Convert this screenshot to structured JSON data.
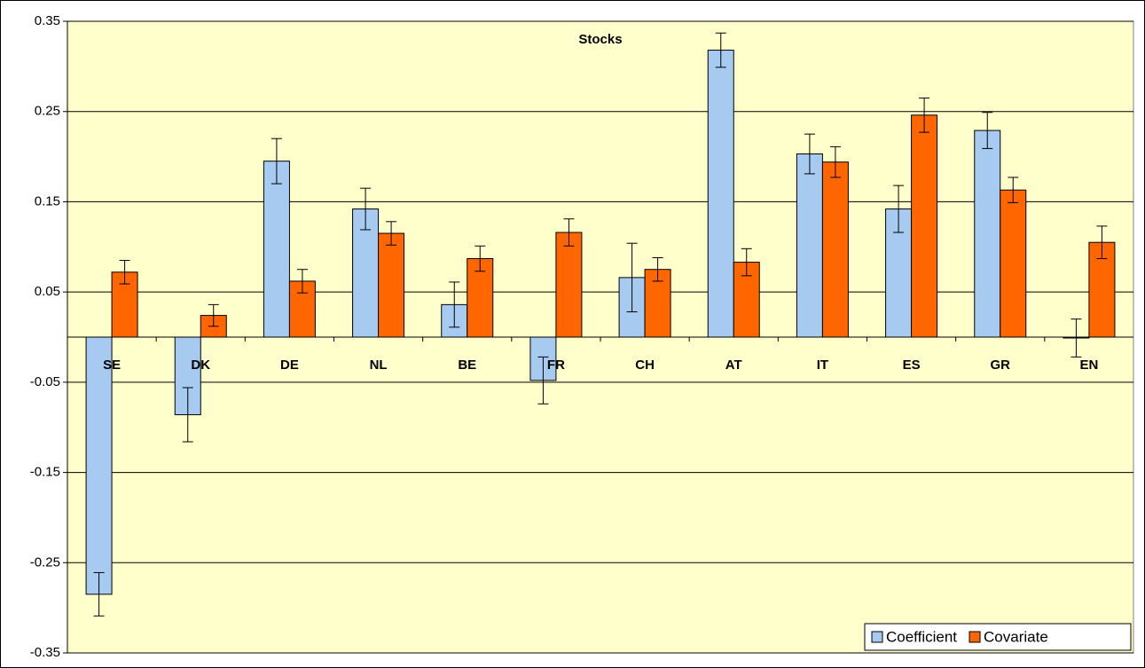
{
  "chart_data": {
    "type": "bar",
    "title": "Stocks",
    "categories": [
      "SE",
      "DK",
      "DE",
      "NL",
      "BE",
      "FR",
      "CH",
      "AT",
      "IT",
      "ES",
      "GR",
      "EN"
    ],
    "series": [
      {
        "name": "Coefficient",
        "color": "#a6caf0",
        "values": [
          -0.285,
          -0.086,
          0.195,
          0.142,
          0.036,
          -0.048,
          0.066,
          0.318,
          0.203,
          0.142,
          0.229,
          -0.001
        ],
        "errors": [
          0.024,
          0.03,
          0.025,
          0.023,
          0.025,
          0.026,
          0.038,
          0.019,
          0.022,
          0.026,
          0.02,
          0.021
        ]
      },
      {
        "name": "Covariate",
        "color": "#ff6600",
        "values": [
          0.072,
          0.024,
          0.062,
          0.115,
          0.087,
          0.116,
          0.075,
          0.083,
          0.194,
          0.246,
          0.163,
          0.105
        ],
        "errors": [
          0.013,
          0.012,
          0.013,
          0.013,
          0.014,
          0.015,
          0.013,
          0.015,
          0.017,
          0.019,
          0.014,
          0.018
        ]
      }
    ],
    "ylim": [
      -0.35,
      0.35
    ],
    "yticks": [
      0.35,
      0.25,
      0.15,
      0.05,
      -0.05,
      -0.15,
      -0.25,
      -0.35
    ],
    "grid": true,
    "legend": "bottom-right",
    "background": "#ffffcc"
  }
}
